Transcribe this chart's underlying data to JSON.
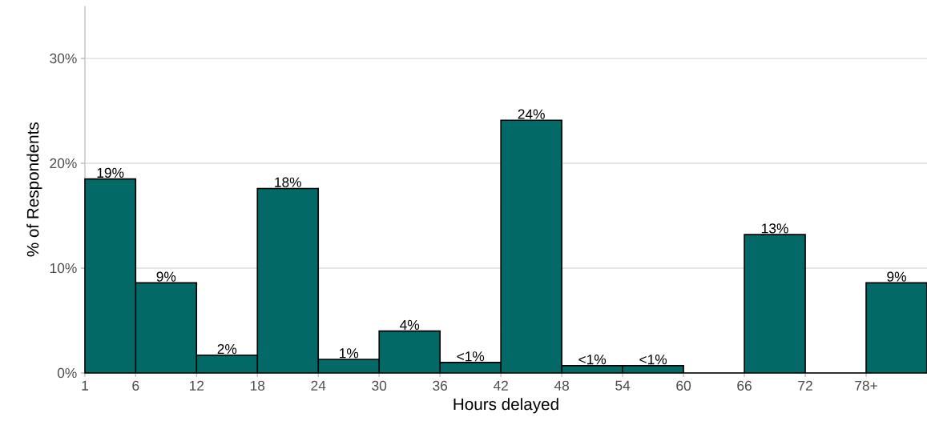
{
  "chart_data": {
    "type": "histogram",
    "xlabel": "Hours delayed",
    "ylabel": "% of Respondents",
    "bins": [
      1,
      6,
      12,
      18,
      24,
      30,
      36,
      42,
      48,
      54,
      60,
      66,
      72,
      78,
      84
    ],
    "values": [
      18.5,
      8.6,
      1.7,
      17.6,
      1.3,
      4.0,
      1.0,
      24.1,
      0.7,
      0.7,
      0,
      13.2,
      0,
      8.6
    ],
    "value_labels": [
      "19%",
      "9%",
      "2%",
      "18%",
      "1%",
      "4%",
      "<1%",
      "24%",
      "<1%",
      "<1%",
      null,
      "13%",
      null,
      "9%"
    ],
    "color": "#036966",
    "xlim": [
      1,
      84
    ],
    "xticks": [
      1,
      6,
      12,
      18,
      24,
      30,
      36,
      42,
      48,
      54,
      60,
      66,
      72,
      {
        "value": 78,
        "label": "78+"
      }
    ],
    "ylim": [
      0,
      35
    ],
    "yticks": [
      {
        "value": 0,
        "label": "0%"
      },
      {
        "value": 10,
        "label": "10%"
      },
      {
        "value": 20,
        "label": "20%"
      },
      {
        "value": 30,
        "label": "30%"
      }
    ],
    "grid": "y"
  }
}
